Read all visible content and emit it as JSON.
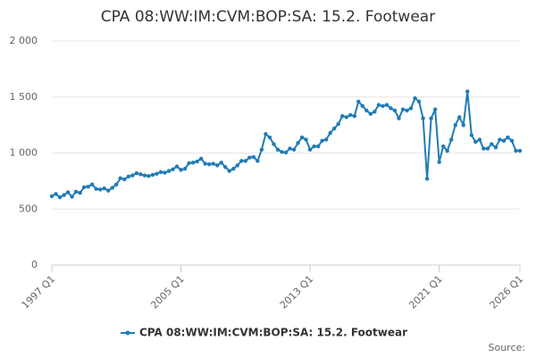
{
  "chart_data": {
    "type": "line",
    "title": "CPA 08:WW:IM:CVM:BOP:SA: 15.2. Footwear",
    "source": "Source:",
    "categories": [
      "1997 Q1",
      null,
      null,
      null,
      null,
      null,
      null,
      null,
      null,
      null,
      null,
      null,
      null,
      null,
      null,
      null,
      null,
      null,
      null,
      null,
      null,
      null,
      null,
      null,
      null,
      null,
      null,
      null,
      null,
      null,
      null,
      null,
      "2005 Q1",
      null,
      null,
      null,
      null,
      null,
      null,
      null,
      null,
      null,
      null,
      null,
      null,
      null,
      null,
      null,
      null,
      null,
      null,
      null,
      null,
      null,
      null,
      null,
      null,
      null,
      null,
      null,
      null,
      null,
      null,
      null,
      "2013 Q1",
      null,
      null,
      null,
      null,
      null,
      null,
      null,
      null,
      null,
      null,
      null,
      null,
      null,
      null,
      null,
      null,
      null,
      null,
      null,
      null,
      null,
      null,
      null,
      null,
      null,
      null,
      null,
      null,
      null,
      null,
      null,
      "2021 Q1",
      null,
      null,
      null,
      null,
      null,
      null,
      null,
      null,
      null,
      null,
      null,
      null,
      null,
      null,
      null,
      null,
      null,
      null,
      null,
      "2026 Q1"
    ],
    "series": [
      {
        "name": "CPA 08:WW:IM:CVM:BOP:SA: 15.2. Footwear",
        "color": "#1f7bb6",
        "values": [
          615,
          635,
          605,
          625,
          650,
          610,
          655,
          645,
          695,
          700,
          720,
          680,
          675,
          685,
          665,
          690,
          720,
          775,
          765,
          790,
          800,
          820,
          810,
          800,
          795,
          805,
          815,
          830,
          825,
          840,
          855,
          880,
          850,
          860,
          910,
          915,
          925,
          950,
          905,
          900,
          905,
          890,
          915,
          875,
          840,
          860,
          890,
          930,
          930,
          960,
          965,
          930,
          1030,
          1170,
          1140,
          1080,
          1030,
          1010,
          1005,
          1040,
          1030,
          1090,
          1140,
          1120,
          1030,
          1060,
          1060,
          1110,
          1120,
          1180,
          1220,
          1260,
          1330,
          1320,
          1340,
          1330,
          1460,
          1420,
          1380,
          1350,
          1370,
          1430,
          1420,
          1430,
          1400,
          1380,
          1310,
          1390,
          1380,
          1400,
          1490,
          1460,
          1310,
          770,
          1310,
          1390,
          920,
          1060,
          1020,
          1120,
          1250,
          1320,
          1250,
          1550,
          1160,
          1100,
          1120,
          1040,
          1040,
          1080,
          1050,
          1120,
          1110,
          1140,
          1110,
          1020,
          1020
        ]
      }
    ],
    "ylim": [
      0,
      2000
    ],
    "yticks": [
      0,
      500,
      {
        "value": 1000,
        "label": "1 000"
      },
      {
        "value": 1500,
        "label": "1 500"
      },
      {
        "value": 2000,
        "label": "2 000"
      }
    ],
    "grid": true
  }
}
